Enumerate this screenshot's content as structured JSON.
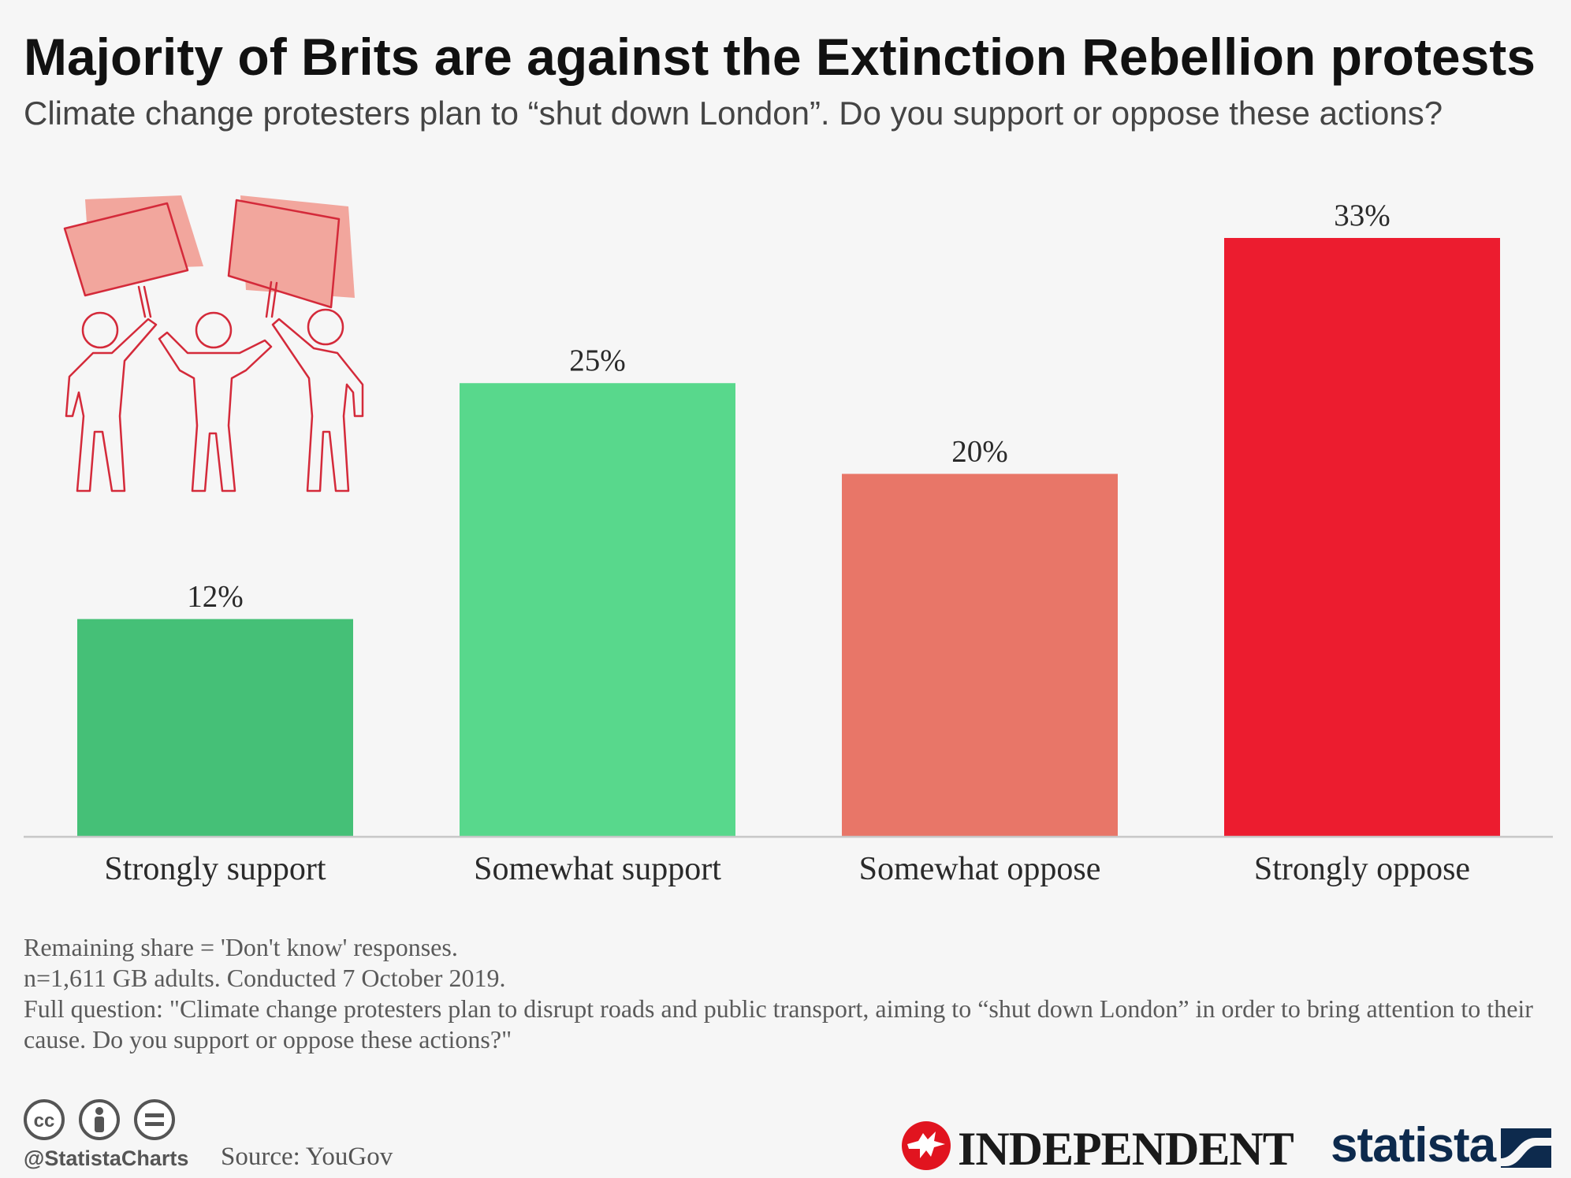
{
  "header": {
    "title": "Majority of Brits are against the Extinction Rebellion protests",
    "subtitle": "Climate change protesters plan to “shut down London”. Do you support or oppose these actions?"
  },
  "chart_data": {
    "type": "bar",
    "title": "Majority of Brits are against the Extinction Rebellion protests",
    "subtitle": "Climate change protesters plan to “shut down London”. Do you support or oppose these actions?",
    "categories": [
      "Strongly support",
      "Somewhat support",
      "Somewhat oppose",
      "Strongly oppose"
    ],
    "values": [
      12,
      25,
      20,
      33
    ],
    "value_labels": [
      "12%",
      "25%",
      "20%",
      "33%"
    ],
    "colors": [
      "#45c077",
      "#58d88c",
      "#e87668",
      "#ec1c2f"
    ],
    "xlabel": "",
    "ylabel": "",
    "ylim": [
      0,
      33
    ],
    "grid": false
  },
  "notes": {
    "line1": "Remaining share = 'Don't know' responses.",
    "line2": "n=1,611 GB adults. Conducted 7 October 2019.",
    "line3": "Full question: \"Climate change protesters plan to disrupt roads and public transport, aiming to “shut down London” in order to bring attention to their cause. Do you support or oppose these actions?\""
  },
  "footer": {
    "handle": "@StatistaCharts",
    "source": "Source: YouGov",
    "partner": "INDEPENDENT",
    "brand": "statista"
  },
  "icons": [
    "protesters-illustration",
    "cc-icon",
    "by-icon",
    "nd-icon",
    "eagle-logo",
    "statista-logo"
  ]
}
